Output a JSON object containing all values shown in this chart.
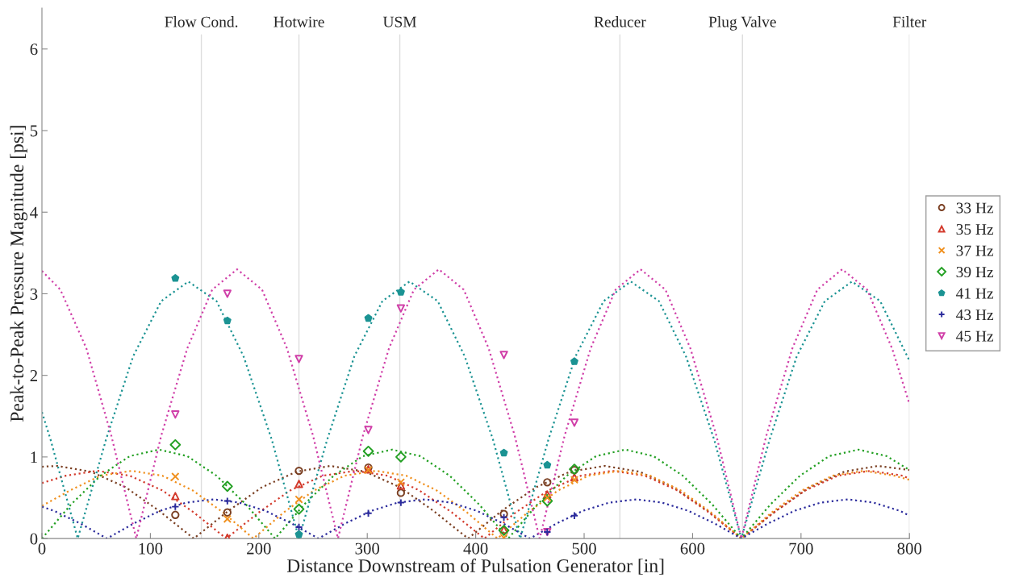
{
  "chart_data": {
    "type": "line",
    "xlabel": "Distance Downstream of Pulsation Generator [in]",
    "ylabel": "Peak-to-Peak Pressure Magnitude [psi]",
    "xlim": [
      0,
      800
    ],
    "ylim": [
      0,
      6.5
    ],
    "xticks": [
      0,
      100,
      200,
      300,
      400,
      500,
      600,
      700,
      800
    ],
    "yticks": [
      0,
      1,
      2,
      3,
      4,
      5,
      6
    ],
    "grid": false,
    "legend": "right",
    "ref_lines": [
      {
        "axis": "x",
        "value": 147,
        "label": "Flow Cond.",
        "color": "#dddddd"
      },
      {
        "axis": "x",
        "value": 237,
        "label": "Hotwire",
        "color": "#dddddd"
      },
      {
        "axis": "x",
        "value": 330,
        "label": "USM",
        "color": "#dddddd"
      },
      {
        "axis": "x",
        "value": 533,
        "label": "Reducer",
        "color": "#dddddd"
      },
      {
        "axis": "x",
        "value": 646,
        "label": "Plug Valve",
        "color": "#dddddd"
      },
      {
        "axis": "x",
        "value": 800,
        "label": "Filter",
        "color": "#dddddd"
      }
    ],
    "series": [
      {
        "color": "#7a3f22",
        "line_style": "dotted",
        "marker": "none",
        "x": [
          0,
          14,
          45,
          77,
          108,
          140,
          172,
          203,
          235,
          266,
          298,
          330,
          361,
          393,
          424,
          456,
          487,
          519,
          551,
          582,
          614,
          645,
          677,
          708,
          740,
          771,
          800
        ],
        "values": [
          0.88,
          0.89,
          0.82,
          0.63,
          0.34,
          0,
          0.34,
          0.63,
          0.82,
          0.89,
          0.82,
          0.63,
          0.34,
          0,
          0.34,
          0.63,
          0.82,
          0.89,
          0.82,
          0.63,
          0.34,
          0,
          0.34,
          0.63,
          0.82,
          0.89,
          0.84
        ]
      },
      {
        "color": "#d33a2c",
        "line_style": "dotted",
        "marker": "none",
        "x": [
          0,
          22,
          51,
          81,
          111,
          140,
          170,
          200,
          229,
          259,
          289,
          319,
          348,
          378,
          408,
          437,
          467,
          497,
          526,
          556,
          586,
          615,
          645,
          675,
          704,
          734,
          764,
          794,
          800
        ],
        "values": [
          0.68,
          0.77,
          0.83,
          0.77,
          0.59,
          0.32,
          0,
          0.32,
          0.59,
          0.77,
          0.83,
          0.77,
          0.59,
          0.32,
          0,
          0.32,
          0.59,
          0.77,
          0.83,
          0.77,
          0.59,
          0.32,
          0,
          0.32,
          0.59,
          0.77,
          0.83,
          0.77,
          0.73
        ]
      },
      {
        "color": "#f0901e",
        "line_style": "dotted",
        "marker": "none",
        "x": [
          0,
          26,
          54,
          83,
          111,
          139,
          167,
          195,
          223,
          251,
          279,
          308,
          336,
          364,
          392,
          420,
          448,
          476,
          504,
          533,
          561,
          589,
          617,
          645,
          673,
          701,
          729,
          758,
          786,
          800
        ],
        "values": [
          0.4,
          0.59,
          0.77,
          0.83,
          0.77,
          0.59,
          0.32,
          0,
          0.32,
          0.59,
          0.77,
          0.83,
          0.77,
          0.59,
          0.32,
          0,
          0.32,
          0.59,
          0.77,
          0.83,
          0.77,
          0.59,
          0.32,
          0,
          0.32,
          0.59,
          0.77,
          0.83,
          0.77,
          0.72
        ]
      },
      {
        "color": "#23a023",
        "line_style": "dotted",
        "marker": "none",
        "x": [
          0,
          27,
          54,
          81,
          108,
          134,
          161,
          188,
          215,
          242,
          269,
          296,
          323,
          349,
          376,
          403,
          430,
          457,
          484,
          511,
          538,
          564,
          591,
          618,
          645,
          672,
          699,
          726,
          753,
          779,
          800
        ],
        "values": [
          0,
          0.42,
          0.77,
          1.01,
          1.09,
          1.01,
          0.77,
          0.42,
          0,
          0.42,
          0.77,
          1.01,
          1.09,
          1.01,
          0.77,
          0.42,
          0,
          0.42,
          0.77,
          1.01,
          1.09,
          1.01,
          0.77,
          0.42,
          0,
          0.42,
          0.77,
          1.01,
          1.09,
          1.01,
          0.84
        ]
      },
      {
        "color": "#1b9393",
        "line_style": "dotted",
        "marker": "none",
        "x": [
          0,
          8,
          33,
          59,
          84,
          110,
          135,
          161,
          186,
          212,
          237,
          263,
          288,
          314,
          339,
          365,
          390,
          416,
          441,
          467,
          492,
          518,
          543,
          569,
          594,
          620,
          645,
          671,
          696,
          722,
          747,
          773,
          800
        ],
        "values": [
          1.55,
          1.21,
          0,
          1.21,
          2.23,
          2.91,
          3.15,
          2.91,
          2.23,
          1.21,
          0,
          1.21,
          2.23,
          2.91,
          3.15,
          2.91,
          2.23,
          1.21,
          0,
          1.21,
          2.23,
          2.91,
          3.15,
          2.91,
          2.23,
          1.21,
          0,
          1.21,
          2.23,
          2.91,
          3.15,
          2.91,
          2.18
        ]
      },
      {
        "color": "#2b2b9c",
        "line_style": "dotted",
        "marker": "none",
        "x": [
          0,
          11,
          36,
          60,
          84,
          109,
          133,
          158,
          182,
          206,
          231,
          255,
          279,
          304,
          328,
          353,
          377,
          401,
          426,
          450,
          474,
          499,
          523,
          548,
          572,
          596,
          621,
          645,
          669,
          694,
          718,
          743,
          767,
          791,
          800
        ],
        "values": [
          0.39,
          0.34,
          0.18,
          0,
          0.18,
          0.34,
          0.44,
          0.48,
          0.44,
          0.34,
          0.18,
          0,
          0.18,
          0.34,
          0.44,
          0.48,
          0.44,
          0.34,
          0.18,
          0,
          0.18,
          0.34,
          0.44,
          0.48,
          0.44,
          0.34,
          0.18,
          0,
          0.18,
          0.34,
          0.44,
          0.48,
          0.44,
          0.34,
          0.28
        ]
      },
      {
        "color": "#d03fa8",
        "line_style": "dotted",
        "marker": "none",
        "x": [
          0,
          17,
          41,
          64,
          87,
          110,
          134,
          157,
          180,
          203,
          226,
          250,
          273,
          296,
          320,
          343,
          366,
          389,
          412,
          436,
          459,
          482,
          506,
          529,
          552,
          575,
          598,
          622,
          645,
          668,
          692,
          715,
          738,
          761,
          784,
          800
        ],
        "values": [
          3.28,
          3.05,
          2.33,
          1.26,
          0,
          1.26,
          2.33,
          3.05,
          3.3,
          3.05,
          2.33,
          1.26,
          0,
          1.26,
          2.33,
          3.05,
          3.3,
          3.05,
          2.33,
          1.26,
          0,
          1.26,
          2.33,
          3.05,
          3.3,
          3.05,
          2.33,
          1.26,
          0,
          1.26,
          2.33,
          3.05,
          3.3,
          3.05,
          2.33,
          1.65
        ]
      },
      {
        "type": "scatter",
        "name": "33 Hz",
        "color": "#7a3f22",
        "marker": "circle",
        "x": [
          123,
          171,
          237,
          301,
          331,
          426,
          466,
          491
        ],
        "values": [
          0.29,
          0.32,
          0.83,
          0.87,
          0.56,
          0.3,
          0.69,
          0.84
        ]
      },
      {
        "type": "scatter",
        "name": "35 Hz",
        "color": "#d33a2c",
        "marker": "triangle",
        "x": [
          123,
          171,
          237,
          301,
          331,
          426,
          466,
          491
        ],
        "values": [
          0.52,
          0.01,
          0.67,
          0.85,
          0.65,
          0.11,
          0.54,
          0.75
        ]
      },
      {
        "type": "scatter",
        "name": "37 Hz",
        "color": "#f0901e",
        "marker": "cross",
        "x": [
          123,
          171,
          237,
          301,
          331,
          426,
          466,
          491
        ],
        "values": [
          0.76,
          0.24,
          0.48,
          0.84,
          0.69,
          0.01,
          0.5,
          0.72
        ]
      },
      {
        "type": "scatter",
        "name": "39 Hz",
        "color": "#23a023",
        "marker": "diamond",
        "x": [
          123,
          171,
          237,
          301,
          331,
          426,
          466,
          491
        ],
        "values": [
          1.15,
          0.64,
          0.36,
          1.07,
          1.0,
          0.1,
          0.46,
          0.85
        ]
      },
      {
        "type": "scatter",
        "name": "41 Hz",
        "color": "#1b9393",
        "marker": "star",
        "x": [
          123,
          171,
          237,
          301,
          331,
          426,
          466,
          491
        ],
        "values": [
          3.19,
          2.67,
          0.05,
          2.7,
          3.02,
          1.05,
          0.9,
          2.17
        ]
      },
      {
        "type": "scatter",
        "name": "43 Hz",
        "color": "#2b2b9c",
        "marker": "plus",
        "x": [
          123,
          171,
          237,
          301,
          331,
          426,
          466,
          491
        ],
        "values": [
          0.39,
          0.46,
          0.14,
          0.31,
          0.44,
          0.26,
          0.08,
          0.28
        ]
      },
      {
        "type": "scatter",
        "name": "45 Hz",
        "color": "#d03fa8",
        "marker": "triangle_down",
        "x": [
          123,
          171,
          237,
          301,
          331,
          426,
          466,
          491
        ],
        "values": [
          1.52,
          3.0,
          2.2,
          1.33,
          2.82,
          2.25,
          0.08,
          1.42
        ]
      }
    ]
  }
}
